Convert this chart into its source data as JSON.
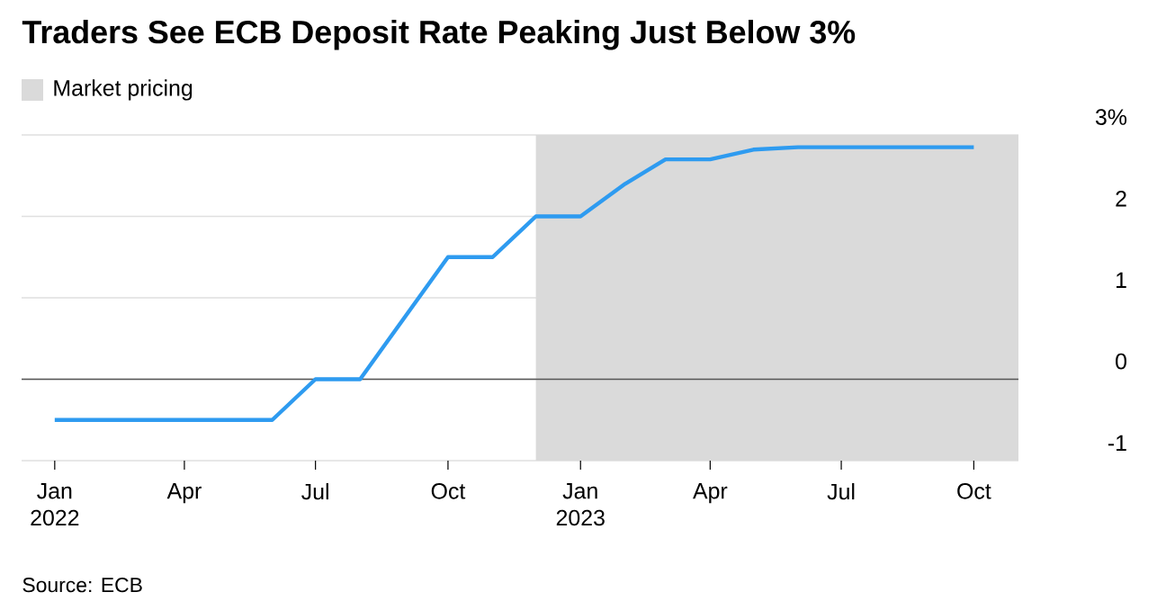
{
  "chart_data": {
    "type": "line",
    "title": "Traders See ECB Deposit Rate Peaking Just Below 3%",
    "x": [
      "2022-01",
      "2022-02",
      "2022-03",
      "2022-04",
      "2022-05",
      "2022-06",
      "2022-07",
      "2022-08",
      "2022-10",
      "2022-11",
      "2022-12",
      "2023-01",
      "2023-02",
      "2023-03",
      "2023-04",
      "2023-05",
      "2023-06",
      "2023-07",
      "2023-08",
      "2023-09",
      "2023-10"
    ],
    "series": [
      {
        "color": "#2e9bf0",
        "values": [
          -0.5,
          -0.5,
          -0.5,
          -0.5,
          -0.5,
          -0.5,
          0,
          0,
          1.5,
          1.5,
          2,
          2,
          2.4,
          2.7,
          2.7,
          2.82,
          2.85,
          2.85,
          2.85,
          2.85,
          2.85
        ]
      }
    ],
    "xlim": [
      "2021-12-09",
      "2023-11-01"
    ],
    "xticks": [
      {
        "value": "2022-01",
        "label": "Jan 2022"
      },
      {
        "value": "2022-04",
        "label": "Apr"
      },
      {
        "value": "2022-07",
        "label": "Jul"
      },
      {
        "value": "2022-10",
        "label": "Oct"
      },
      {
        "value": "2023-01",
        "label": "Jan 2023"
      },
      {
        "value": "2023-04",
        "label": "Apr"
      },
      {
        "value": "2023-07",
        "label": "Jul"
      },
      {
        "value": "2023-10",
        "label": "Oct"
      }
    ],
    "ylim": [
      -1,
      3
    ],
    "yticks": [
      -1,
      0,
      1,
      2,
      {
        "value": 3,
        "label": "3%"
      }
    ],
    "grid": "y",
    "bands": [
      {
        "axis": "x",
        "from": "2022-12",
        "to": "2023-11",
        "label": "Market pricing",
        "color": "#dadada"
      }
    ],
    "ref_lines": [
      {
        "axis": "y",
        "value": 0,
        "color": "#555555"
      }
    ],
    "legend": "top left",
    "annotations": [
      "Source: ECB"
    ]
  }
}
